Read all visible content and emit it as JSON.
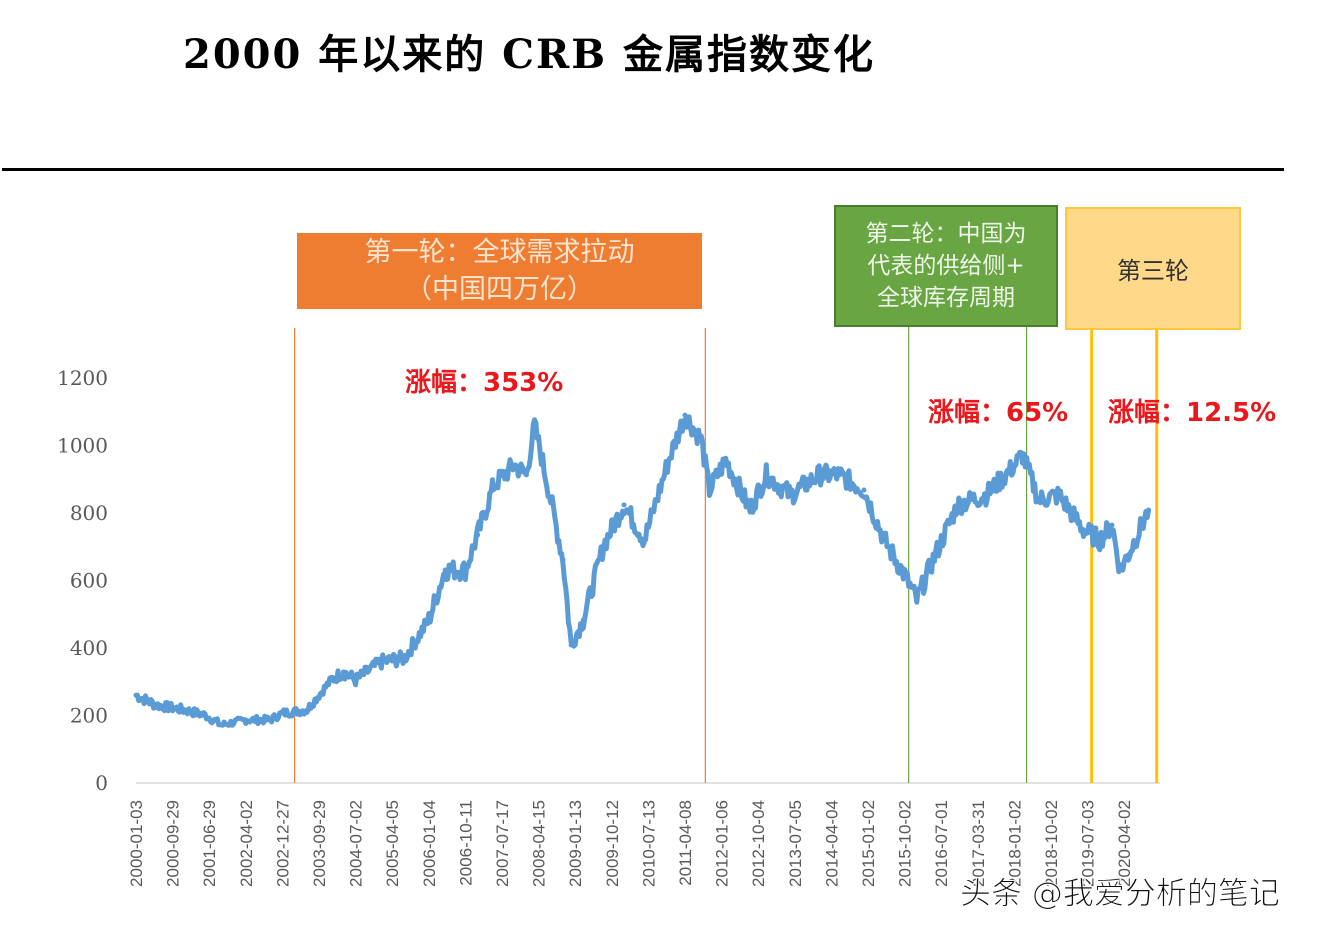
{
  "title": "2000 年以来的 CRB 金属指数变化",
  "annotations": {
    "round1": "第一轮：全球需求拉动\n（中国四万亿）",
    "round2": "第二轮：中国为\n代表的供给侧+\n全球库存周期",
    "round3": "第三轮",
    "gain1": "涨幅：353%",
    "gain2": "涨幅：65%",
    "gain3": "涨幅：12.5%"
  },
  "watermark": "头条 @我爱分析的笔记",
  "colors": {
    "line": "#5b9bd5",
    "round1": "#ef7d31",
    "round2": "#6aa544",
    "round3": "#ffc000",
    "gain": "#e8181c"
  },
  "chart_data": {
    "type": "line",
    "title": "2000 年以来的 CRB 金属指数变化",
    "ylim": [
      0,
      1200
    ],
    "yticks": [
      0,
      200,
      400,
      600,
      800,
      1000,
      1200
    ],
    "grid": false,
    "xtick_labels": [
      "2000-01-03",
      "2000-09-29",
      "2001-06-29",
      "2002-04-02",
      "2002-12-27",
      "2003-09-29",
      "2004-07-02",
      "2005-04-05",
      "2006-01-04",
      "2006-10-11",
      "2007-07-17",
      "2008-04-15",
      "2009-01-13",
      "2009-10-12",
      "2010-07-13",
      "2011-04-08",
      "2012-01-06",
      "2012-10-04",
      "2013-07-05",
      "2014-04-04",
      "2015-01-02",
      "2015-10-02",
      "2016-07-01",
      "2017-03-31",
      "2018-01-02",
      "2018-10-02",
      "2019-07-03",
      "2020-04-02"
    ],
    "x": [
      "2000-01",
      "2000-06",
      "2001-01",
      "2001-06",
      "2001-10",
      "2002-04",
      "2002-10",
      "2003-01",
      "2003-07",
      "2004-01",
      "2004-04",
      "2004-07",
      "2005-01",
      "2005-07",
      "2006-01",
      "2006-05",
      "2006-10",
      "2007-01",
      "2007-05",
      "2007-10",
      "2008-01",
      "2008-03",
      "2008-07",
      "2008-10",
      "2008-12",
      "2009-03",
      "2009-08",
      "2010-01",
      "2010-06",
      "2010-12",
      "2011-04",
      "2011-08",
      "2011-10",
      "2012-02",
      "2012-08",
      "2012-12",
      "2013-06",
      "2014-01",
      "2014-06",
      "2014-12",
      "2015-05",
      "2015-10",
      "2016-01",
      "2016-05",
      "2016-11",
      "2017-06",
      "2017-12",
      "2018-03",
      "2018-07",
      "2018-12",
      "2019-06",
      "2019-10",
      "2020-01",
      "2020-03",
      "2020-05",
      "2020-10"
    ],
    "values": [
      260,
      231,
      216,
      201,
      172,
      187,
      187,
      207,
      216,
      305,
      329,
      305,
      358,
      370,
      483,
      631,
      631,
      735,
      883,
      942,
      913,
      1061,
      839,
      661,
      409,
      483,
      705,
      824,
      720,
      957,
      1090,
      1016,
      868,
      957,
      809,
      913,
      853,
      913,
      913,
      868,
      720,
      616,
      542,
      661,
      824,
      853,
      927,
      972,
      839,
      853,
      750,
      720,
      764,
      631,
      676,
      809
    ],
    "markers": [
      {
        "date": "2003-04",
        "round": "round1"
      },
      {
        "date": "2011-09",
        "round": "round1"
      },
      {
        "date": "2015-11",
        "round": "round2"
      },
      {
        "date": "2018-04",
        "round": "round2"
      },
      {
        "date": "2019-08",
        "round": "round3"
      },
      {
        "date": "2020-12",
        "round": "round3"
      }
    ]
  }
}
